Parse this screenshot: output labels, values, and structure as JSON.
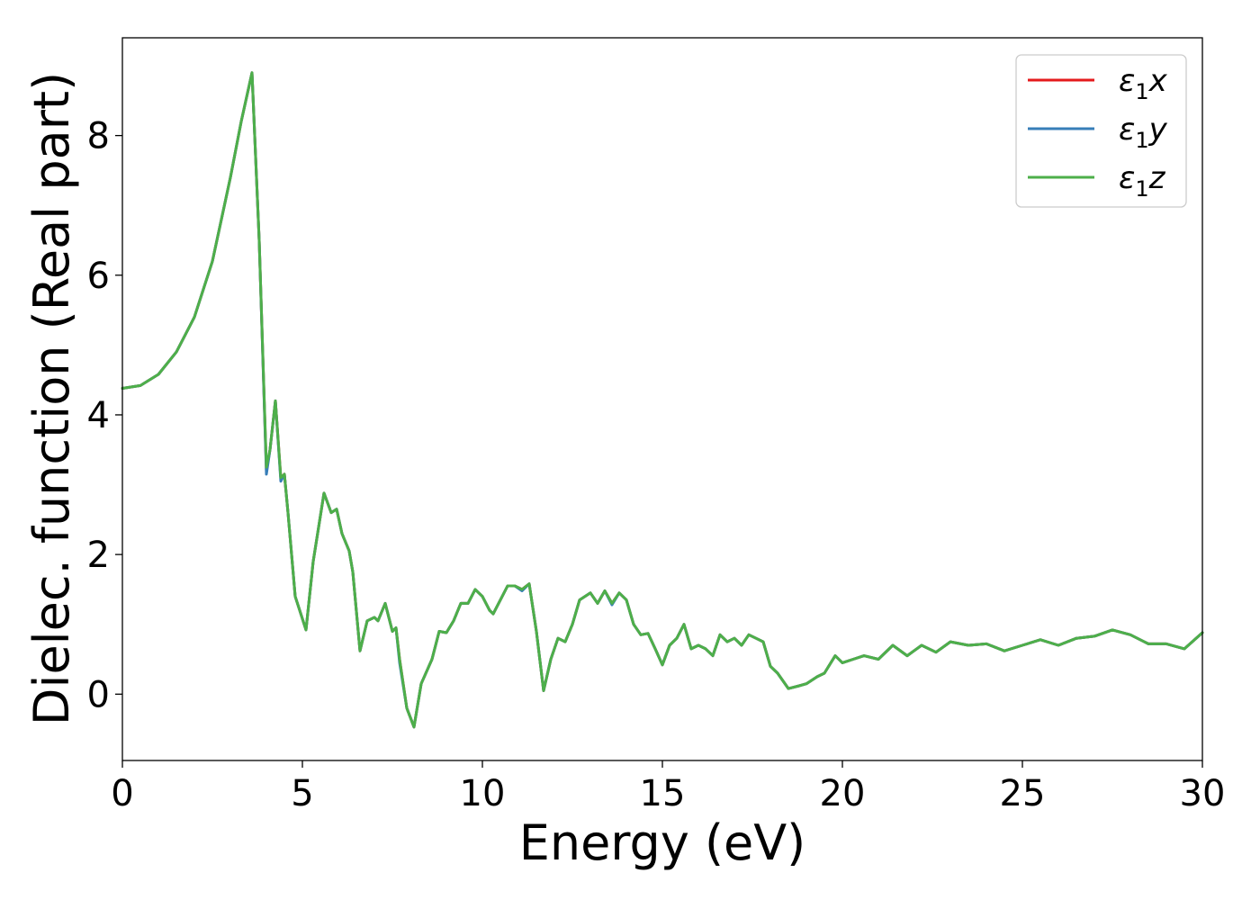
{
  "chart_data": {
    "type": "line",
    "title": "",
    "xlabel": "Energy (eV)",
    "ylabel": "Dielec. function (Real part)",
    "xlim": [
      0,
      30
    ],
    "ylim": [
      -0.95,
      9.4
    ],
    "xticks": [
      0,
      5,
      10,
      15,
      20,
      25,
      30
    ],
    "yticks": [
      0,
      2,
      4,
      6,
      8
    ],
    "grid": false,
    "legend_position": "top-right",
    "series": [
      {
        "name": "ε1x",
        "legend_base": "ε",
        "legend_sub": "1",
        "legend_suffix": "x",
        "color": "#e41a1c",
        "x": [
          0,
          0.5,
          1,
          1.5,
          2,
          2.5,
          3,
          3.3,
          3.6,
          3.8,
          4.0,
          4.1,
          4.25,
          4.4,
          4.5,
          4.6,
          4.8,
          5.1,
          5.3,
          5.6,
          5.8,
          5.95,
          6.1,
          6.3,
          6.4,
          6.6,
          6.8,
          7.0,
          7.1,
          7.3,
          7.5,
          7.6,
          7.7,
          7.9,
          8.1,
          8.3,
          8.6,
          8.8,
          9.0,
          9.2,
          9.4,
          9.6,
          9.8,
          10.0,
          10.2,
          10.3,
          10.5,
          10.7,
          10.9,
          11.1,
          11.3,
          11.5,
          11.7,
          11.9,
          12.1,
          12.3,
          12.5,
          12.7,
          13.0,
          13.2,
          13.4,
          13.6,
          13.8,
          14.0,
          14.2,
          14.4,
          14.6,
          14.8,
          15.0,
          15.2,
          15.4,
          15.6,
          15.8,
          16.0,
          16.2,
          16.4,
          16.6,
          16.8,
          17.0,
          17.2,
          17.4,
          17.6,
          17.8,
          18.0,
          18.2,
          18.5,
          18.8,
          19.0,
          19.3,
          19.5,
          19.8,
          20.0,
          20.3,
          20.6,
          21.0,
          21.4,
          21.8,
          22.2,
          22.6,
          23.0,
          23.5,
          24.0,
          24.5,
          25.0,
          25.5,
          26.0,
          26.5,
          27.0,
          27.5,
          28.0,
          28.5,
          29.0,
          29.5,
          30.0
        ],
        "y": [
          4.38,
          4.42,
          4.58,
          4.9,
          5.4,
          6.2,
          7.4,
          8.2,
          8.9,
          6.5,
          3.2,
          3.5,
          4.2,
          3.1,
          3.15,
          2.6,
          1.4,
          0.92,
          1.9,
          2.88,
          2.6,
          2.65,
          2.3,
          2.05,
          1.75,
          0.62,
          1.05,
          1.1,
          1.05,
          1.3,
          0.9,
          0.95,
          0.5,
          -0.2,
          -0.47,
          0.15,
          0.5,
          0.9,
          0.88,
          1.05,
          1.3,
          1.3,
          1.5,
          1.4,
          1.2,
          1.15,
          1.35,
          1.55,
          1.55,
          1.5,
          1.58,
          0.9,
          0.05,
          0.5,
          0.8,
          0.75,
          1.0,
          1.35,
          1.45,
          1.3,
          1.48,
          1.3,
          1.45,
          1.35,
          1.0,
          0.85,
          0.87,
          0.65,
          0.42,
          0.7,
          0.8,
          1.0,
          0.65,
          0.7,
          0.65,
          0.55,
          0.85,
          0.75,
          0.8,
          0.7,
          0.85,
          0.8,
          0.75,
          0.4,
          0.3,
          0.08,
          0.12,
          0.15,
          0.25,
          0.3,
          0.55,
          0.45,
          0.5,
          0.55,
          0.5,
          0.7,
          0.55,
          0.7,
          0.6,
          0.75,
          0.7,
          0.72,
          0.62,
          0.7,
          0.78,
          0.7,
          0.8,
          0.83,
          0.92,
          0.85,
          0.72,
          0.72,
          0.65,
          0.88
        ]
      },
      {
        "name": "ε1y",
        "legend_base": "ε",
        "legend_sub": "1",
        "legend_suffix": "y",
        "color": "#377eb8",
        "x": [
          0,
          0.5,
          1,
          1.5,
          2,
          2.5,
          3,
          3.3,
          3.6,
          3.8,
          4.0,
          4.1,
          4.25,
          4.4,
          4.5,
          4.6,
          4.8,
          5.1,
          5.3,
          5.6,
          5.8,
          5.95,
          6.1,
          6.3,
          6.4,
          6.6,
          6.8,
          7.0,
          7.1,
          7.3,
          7.5,
          7.6,
          7.7,
          7.9,
          8.1,
          8.3,
          8.6,
          8.8,
          9.0,
          9.2,
          9.4,
          9.6,
          9.8,
          10.0,
          10.2,
          10.3,
          10.5,
          10.7,
          10.9,
          11.1,
          11.3,
          11.5,
          11.7,
          11.9,
          12.1,
          12.3,
          12.5,
          12.7,
          13.0,
          13.2,
          13.4,
          13.6,
          13.8,
          14.0,
          14.2,
          14.4,
          14.6,
          14.8,
          15.0,
          15.2,
          15.4,
          15.6,
          15.8,
          16.0,
          16.2,
          16.4,
          16.6,
          16.8,
          17.0,
          17.2,
          17.4,
          17.6,
          17.8,
          18.0,
          18.2,
          18.5,
          18.8,
          19.0,
          19.3,
          19.5,
          19.8,
          20.0,
          20.3,
          20.6,
          21.0,
          21.4,
          21.8,
          22.2,
          22.6,
          23.0,
          23.5,
          24.0,
          24.5,
          25.0,
          25.5,
          26.0,
          26.5,
          27.0,
          27.5,
          28.0,
          28.5,
          29.0,
          29.5,
          30.0
        ],
        "y": [
          4.38,
          4.42,
          4.58,
          4.9,
          5.4,
          6.2,
          7.4,
          8.2,
          8.9,
          6.5,
          3.15,
          3.5,
          4.2,
          3.05,
          3.15,
          2.6,
          1.4,
          0.92,
          1.9,
          2.88,
          2.6,
          2.65,
          2.3,
          2.05,
          1.75,
          0.62,
          1.05,
          1.1,
          1.05,
          1.3,
          0.9,
          0.95,
          0.45,
          -0.2,
          -0.47,
          0.15,
          0.5,
          0.9,
          0.88,
          1.05,
          1.3,
          1.3,
          1.5,
          1.4,
          1.2,
          1.15,
          1.35,
          1.55,
          1.55,
          1.48,
          1.58,
          0.9,
          0.05,
          0.5,
          0.8,
          0.75,
          1.0,
          1.35,
          1.45,
          1.3,
          1.48,
          1.28,
          1.45,
          1.35,
          1.0,
          0.85,
          0.87,
          0.65,
          0.42,
          0.7,
          0.8,
          1.0,
          0.65,
          0.7,
          0.65,
          0.55,
          0.85,
          0.75,
          0.8,
          0.7,
          0.85,
          0.8,
          0.75,
          0.4,
          0.3,
          0.08,
          0.12,
          0.15,
          0.25,
          0.3,
          0.55,
          0.45,
          0.5,
          0.55,
          0.5,
          0.7,
          0.55,
          0.7,
          0.6,
          0.75,
          0.7,
          0.72,
          0.62,
          0.7,
          0.78,
          0.7,
          0.8,
          0.83,
          0.92,
          0.85,
          0.72,
          0.72,
          0.65,
          0.88
        ]
      },
      {
        "name": "ε1z",
        "legend_base": "ε",
        "legend_sub": "1",
        "legend_suffix": "z",
        "color": "#4daf4a",
        "x": [
          0,
          0.5,
          1,
          1.5,
          2,
          2.5,
          3,
          3.3,
          3.6,
          3.8,
          4.0,
          4.1,
          4.25,
          4.4,
          4.5,
          4.6,
          4.8,
          5.1,
          5.3,
          5.6,
          5.8,
          5.95,
          6.1,
          6.3,
          6.4,
          6.6,
          6.8,
          7.0,
          7.1,
          7.3,
          7.5,
          7.6,
          7.7,
          7.9,
          8.1,
          8.3,
          8.6,
          8.8,
          9.0,
          9.2,
          9.4,
          9.6,
          9.8,
          10.0,
          10.2,
          10.3,
          10.5,
          10.7,
          10.9,
          11.1,
          11.3,
          11.5,
          11.7,
          11.9,
          12.1,
          12.3,
          12.5,
          12.7,
          13.0,
          13.2,
          13.4,
          13.6,
          13.8,
          14.0,
          14.2,
          14.4,
          14.6,
          14.8,
          15.0,
          15.2,
          15.4,
          15.6,
          15.8,
          16.0,
          16.2,
          16.4,
          16.6,
          16.8,
          17.0,
          17.2,
          17.4,
          17.6,
          17.8,
          18.0,
          18.2,
          18.5,
          18.8,
          19.0,
          19.3,
          19.5,
          19.8,
          20.0,
          20.3,
          20.6,
          21.0,
          21.4,
          21.8,
          22.2,
          22.6,
          23.0,
          23.5,
          24.0,
          24.5,
          25.0,
          25.5,
          26.0,
          26.5,
          27.0,
          27.5,
          28.0,
          28.5,
          29.0,
          29.5,
          30.0
        ],
        "y": [
          4.38,
          4.42,
          4.58,
          4.9,
          5.4,
          6.2,
          7.4,
          8.2,
          8.9,
          6.5,
          3.25,
          3.5,
          4.2,
          3.1,
          3.15,
          2.6,
          1.4,
          0.92,
          1.9,
          2.88,
          2.6,
          2.65,
          2.3,
          2.05,
          1.75,
          0.62,
          1.05,
          1.1,
          1.05,
          1.3,
          0.9,
          0.95,
          0.5,
          -0.2,
          -0.47,
          0.15,
          0.5,
          0.9,
          0.88,
          1.05,
          1.3,
          1.3,
          1.5,
          1.4,
          1.2,
          1.15,
          1.35,
          1.55,
          1.55,
          1.5,
          1.58,
          0.9,
          0.05,
          0.5,
          0.8,
          0.75,
          1.0,
          1.35,
          1.45,
          1.3,
          1.48,
          1.3,
          1.45,
          1.35,
          1.0,
          0.85,
          0.87,
          0.65,
          0.42,
          0.7,
          0.8,
          1.0,
          0.65,
          0.7,
          0.65,
          0.55,
          0.85,
          0.75,
          0.8,
          0.7,
          0.85,
          0.8,
          0.75,
          0.4,
          0.3,
          0.08,
          0.12,
          0.15,
          0.25,
          0.3,
          0.55,
          0.45,
          0.5,
          0.55,
          0.5,
          0.7,
          0.55,
          0.7,
          0.6,
          0.75,
          0.7,
          0.72,
          0.62,
          0.7,
          0.78,
          0.7,
          0.8,
          0.83,
          0.92,
          0.85,
          0.72,
          0.72,
          0.65,
          0.88
        ]
      }
    ]
  }
}
